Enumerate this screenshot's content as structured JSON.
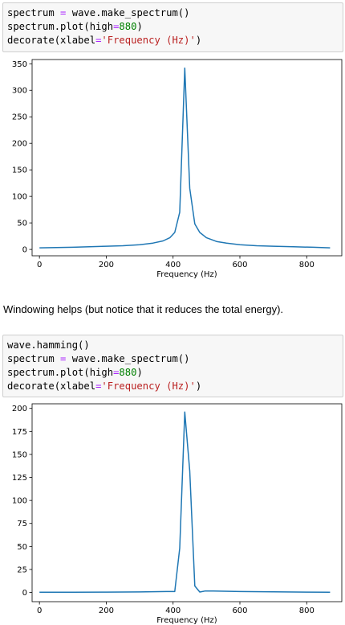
{
  "cells": [
    {
      "code_lines": [
        [
          {
            "t": "spectrum "
          },
          {
            "t": "=",
            "c": "op"
          },
          {
            "t": " wave.make_spectrum()"
          }
        ],
        [
          {
            "t": "spectrum.plot(high"
          },
          {
            "t": "=",
            "c": "op"
          },
          {
            "t": "880",
            "c": "num"
          },
          {
            "t": ")"
          }
        ],
        [
          {
            "t": "decorate(xlabel"
          },
          {
            "t": "=",
            "c": "op"
          },
          {
            "t": "'Frequency (Hz)'",
            "c": "str"
          },
          {
            "t": ")"
          }
        ]
      ]
    },
    {
      "code_lines": [
        [
          {
            "t": "wave.hamming()"
          }
        ],
        [
          {
            "t": "spectrum "
          },
          {
            "t": "=",
            "c": "op"
          },
          {
            "t": " wave.make_spectrum()"
          }
        ],
        [
          {
            "t": "spectrum.plot(high"
          },
          {
            "t": "=",
            "c": "op"
          },
          {
            "t": "880",
            "c": "num"
          },
          {
            "t": ")"
          }
        ],
        [
          {
            "t": "decorate(xlabel"
          },
          {
            "t": "=",
            "c": "op"
          },
          {
            "t": "'Frequency (Hz)'",
            "c": "str"
          },
          {
            "t": ")"
          }
        ]
      ]
    }
  ],
  "markdown_text": "Windowing helps (but notice that it reduces the total energy).",
  "colors": {
    "line": "#1f77b4"
  },
  "chart_data": [
    {
      "type": "line",
      "xlabel": "Frequency (Hz)",
      "ylabel": "",
      "xlim": [
        -22,
        905
      ],
      "ylim": [
        -12,
        358
      ],
      "xticks": [
        0,
        200,
        400,
        600,
        800
      ],
      "yticks": [
        0,
        50,
        100,
        150,
        200,
        250,
        300,
        350
      ],
      "series": [
        {
          "x": [
            0,
            100,
            200,
            250,
            300,
            340,
            370,
            390,
            405,
            420,
            435,
            450,
            465,
            480,
            500,
            530,
            560,
            600,
            650,
            700,
            760,
            820,
            870
          ],
          "values": [
            3,
            4,
            6,
            7,
            9,
            12,
            16,
            22,
            32,
            70,
            342,
            115,
            48,
            32,
            22,
            15,
            12,
            9,
            7,
            6,
            5,
            4,
            3
          ]
        }
      ]
    },
    {
      "type": "line",
      "xlabel": "Frequency (Hz)",
      "ylabel": "",
      "xlim": [
        -22,
        905
      ],
      "ylim": [
        -10,
        205
      ],
      "xticks": [
        0,
        200,
        400,
        600,
        800
      ],
      "yticks": [
        0,
        25,
        50,
        75,
        100,
        125,
        150,
        175,
        200
      ],
      "series": [
        {
          "x": [
            0,
            100,
            200,
            300,
            380,
            405,
            420,
            435,
            450,
            465,
            480,
            495,
            520,
            600,
            700,
            800,
            870
          ],
          "values": [
            0.3,
            0.3,
            0.4,
            0.6,
            1,
            1,
            48,
            196,
            132,
            7,
            0.5,
            1.5,
            1.5,
            1,
            0.7,
            0.4,
            0.3
          ]
        }
      ]
    }
  ]
}
